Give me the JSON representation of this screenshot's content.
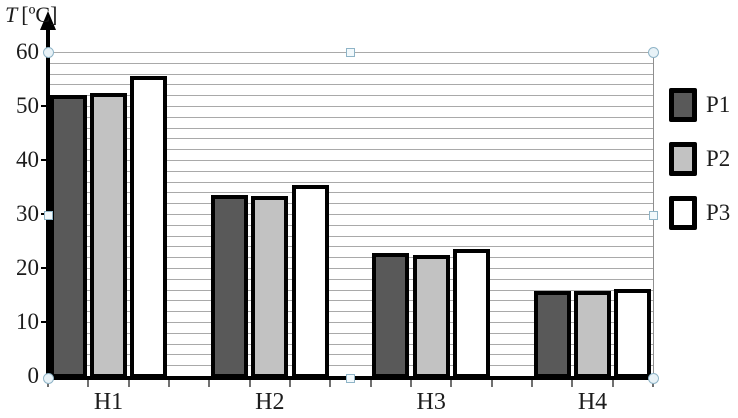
{
  "chart_data": {
    "type": "bar",
    "title": "",
    "y_axis": {
      "symbol": "T",
      "unit": "[ºC]",
      "ylim": [
        0,
        60
      ],
      "tick_labels": [
        "0",
        "10",
        "20",
        "30",
        "40",
        "50",
        "60"
      ],
      "tick_step": 10,
      "gridline_step": 2
    },
    "categories": [
      "H1",
      "H2",
      "H3",
      "H4"
    ],
    "series": [
      {
        "name": "P1",
        "color": "#595959",
        "values": [
          52.0,
          33.5,
          22.8,
          15.7
        ]
      },
      {
        "name": "P2",
        "color": "#c2c2c2",
        "values": [
          52.4,
          33.4,
          22.4,
          15.7
        ]
      },
      {
        "name": "P3",
        "color": "#ffffff",
        "values": [
          55.5,
          35.4,
          23.5,
          16.1
        ]
      }
    ],
    "legend": {
      "position": "right",
      "entries": [
        "P1",
        "P2",
        "P3"
      ]
    },
    "grid": true
  },
  "colors": {
    "bar_border": "#000000",
    "gridline": "#a9a9a9",
    "axis": "#000000",
    "selection_handle": "#8fb4c7"
  },
  "selection": {
    "state": "chart-object-selected",
    "handle_count": 8
  }
}
